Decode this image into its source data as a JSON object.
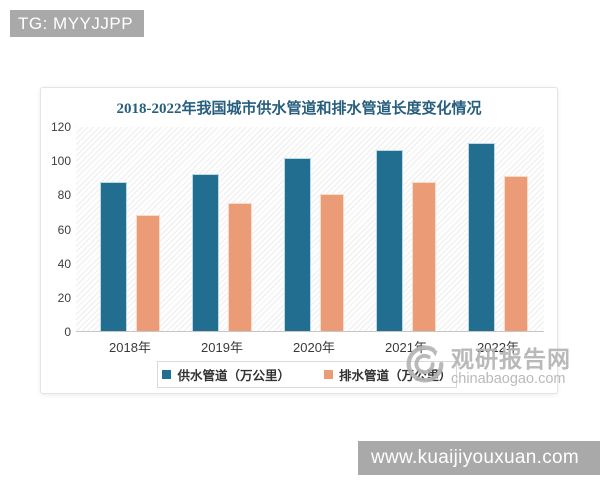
{
  "page": {
    "tag_label": "TG: MYYJJPP",
    "bottom_bar_url": "www.kuaijiyouxuan.com"
  },
  "watermark": {
    "site_name": "观研报告网",
    "site_domain": "chinabaogao.com"
  },
  "chart_data": {
    "type": "bar",
    "title": "2018-2022年我国城市供水管道和排水管道长度变化情况",
    "title_color": "#265e7d",
    "categories": [
      "2018年",
      "2019年",
      "2020年",
      "2021年",
      "2022年"
    ],
    "series": [
      {
        "name": "供水管道（万公里）",
        "color": "#216e90",
        "values": [
          87,
          92,
          101,
          106,
          110
        ]
      },
      {
        "name": "排水管道（万公里）",
        "color": "#ec9b77",
        "values": [
          68,
          75,
          80,
          87,
          91
        ]
      }
    ],
    "ylabel": "",
    "xlabel": "",
    "ylim": [
      0,
      120
    ],
    "yticks": [
      0,
      20,
      40,
      60,
      80,
      100,
      120
    ],
    "grid": false,
    "legend_position": "bottom"
  }
}
